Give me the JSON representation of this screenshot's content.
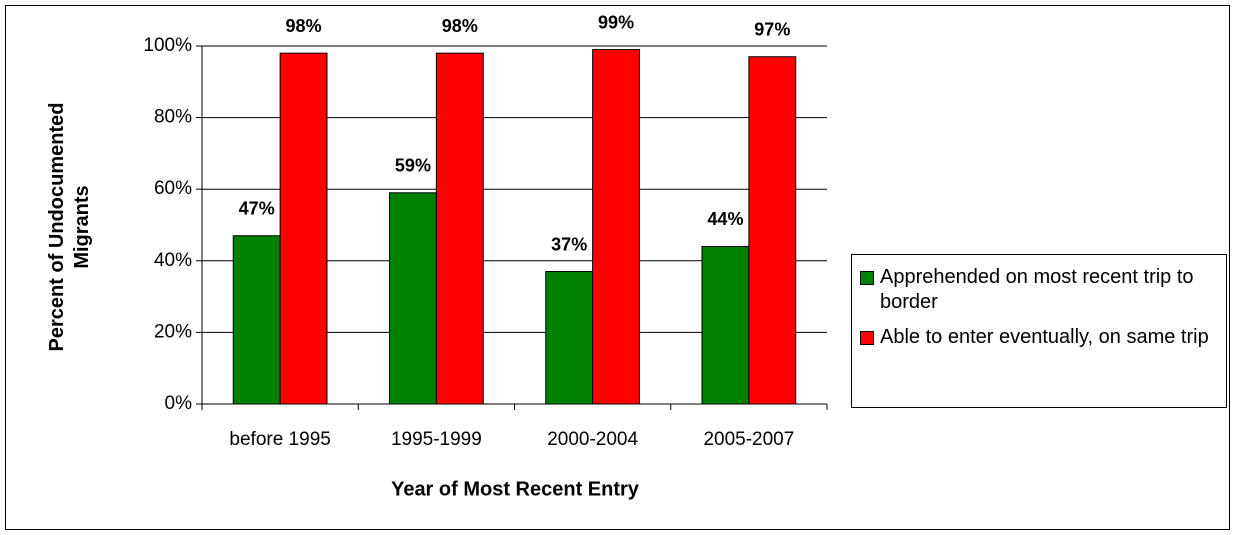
{
  "chart_data": {
    "type": "bar",
    "x_label": "Year of Most Recent Entry",
    "y_label": "Percent of Undocumented Migrants",
    "categories": [
      "before 1995",
      "1995-1999",
      "2000-2004",
      "2005-2007"
    ],
    "series": [
      {
        "name": "Apprehended on most recent trip to border",
        "color": "#008000",
        "values": [
          47,
          59,
          37,
          44
        ],
        "value_labels": [
          "47%",
          "59%",
          "37%",
          "44%"
        ]
      },
      {
        "name": "Able to enter eventually, on same trip",
        "color": "#ff0000",
        "values": [
          98,
          98,
          99,
          97
        ],
        "value_labels": [
          "98%",
          "98%",
          "99%",
          "97%"
        ]
      }
    ],
    "ylim": [
      0,
      100
    ],
    "yticks": [
      {
        "value": 0,
        "label": "0%"
      },
      {
        "value": 20,
        "label": "20%"
      },
      {
        "value": 40,
        "label": "40%"
      },
      {
        "value": 60,
        "label": "60%"
      },
      {
        "value": 80,
        "label": "80%"
      },
      {
        "value": 100,
        "label": "100%"
      }
    ],
    "grid": true,
    "legend": "right"
  }
}
